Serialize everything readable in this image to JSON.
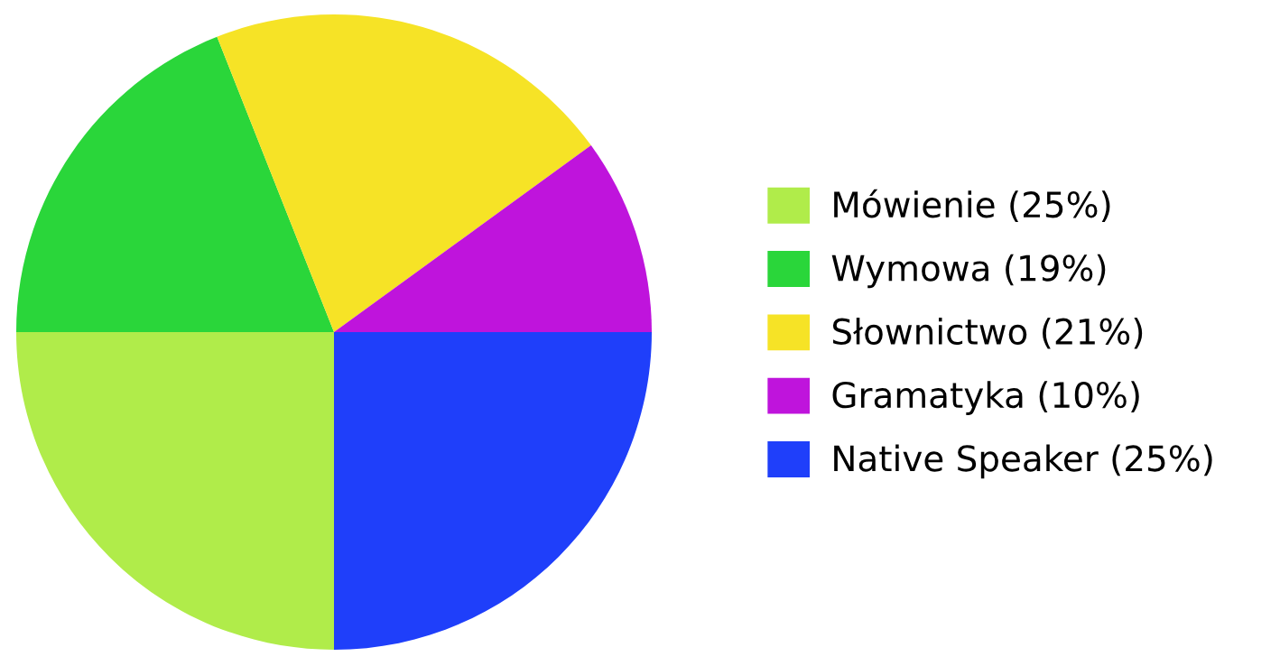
{
  "chart_data": {
    "type": "pie",
    "categories": [
      "Mówienie (25%)",
      "Wymowa (19%)",
      "Słownictwo (21%)",
      "Gramatyka (10%)",
      "Native Speaker (25%)"
    ],
    "values": [
      25,
      19,
      21,
      10,
      25
    ],
    "colors": [
      "#b0ec4a",
      "#2ad63a",
      "#f6e326",
      "#bf14dc",
      "#1f3ffa"
    ],
    "legend": "right"
  }
}
